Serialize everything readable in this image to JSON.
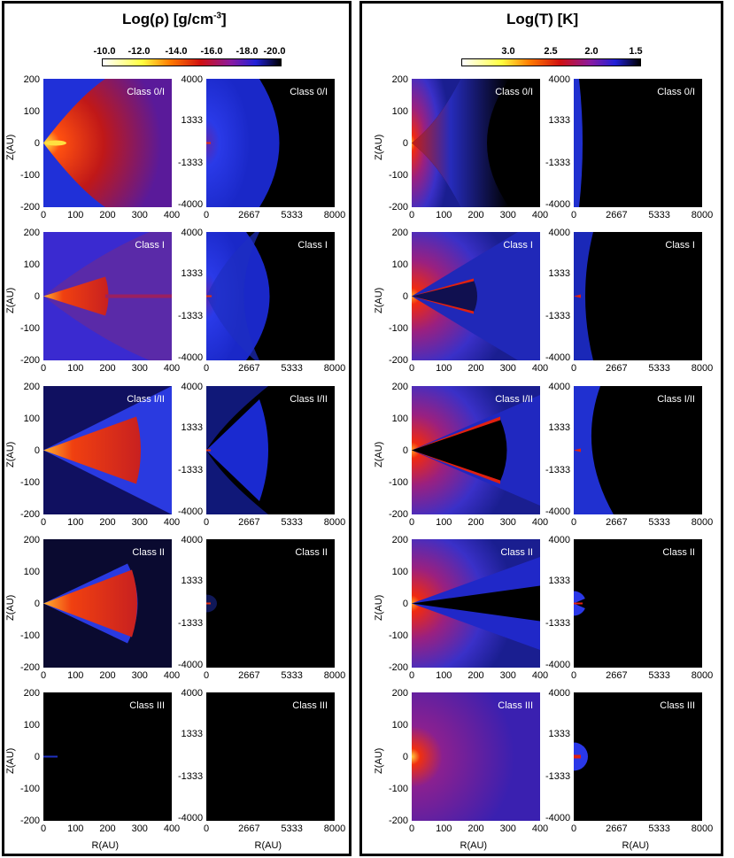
{
  "density_panel": {
    "title": "Log(ρ) [g/cm⁻³]",
    "title_main": "Log(",
    "title_sym": "ρ",
    "title_unit": ") [g/cm",
    "title_sup": "-3",
    "title_close": "]",
    "colorbar_labels": [
      "-10.0",
      "-12.0",
      "-14.0",
      "-16.0",
      "-18.0",
      "-20.0"
    ]
  },
  "temperature_panel": {
    "title_main": "Log(T) [K]",
    "colorbar_labels": [
      "3.0",
      "2.5",
      "2.0",
      "1.5"
    ]
  },
  "classes": [
    "Class 0/I",
    "Class I",
    "Class I/II",
    "Class II",
    "Class III"
  ],
  "inner_axis": {
    "y_ticks": [
      "200",
      "100",
      "0",
      "-100",
      "-200"
    ],
    "x_ticks": [
      "0",
      "100",
      "200",
      "300",
      "400"
    ],
    "ylabel": "Z(AU)",
    "xlabel": "R(AU)"
  },
  "outer_axis": {
    "y_ticks": [
      "4000",
      "1333",
      "-1333",
      "-4000"
    ],
    "x_ticks": [
      "0",
      "2667",
      "5333",
      "8000"
    ],
    "xlabel": "R(AU)"
  },
  "colors": {
    "background": "#000000",
    "envelope_blue": "#1a2bd6",
    "disk_red": "#e02010",
    "hot_yellow": "#ffe040"
  }
}
